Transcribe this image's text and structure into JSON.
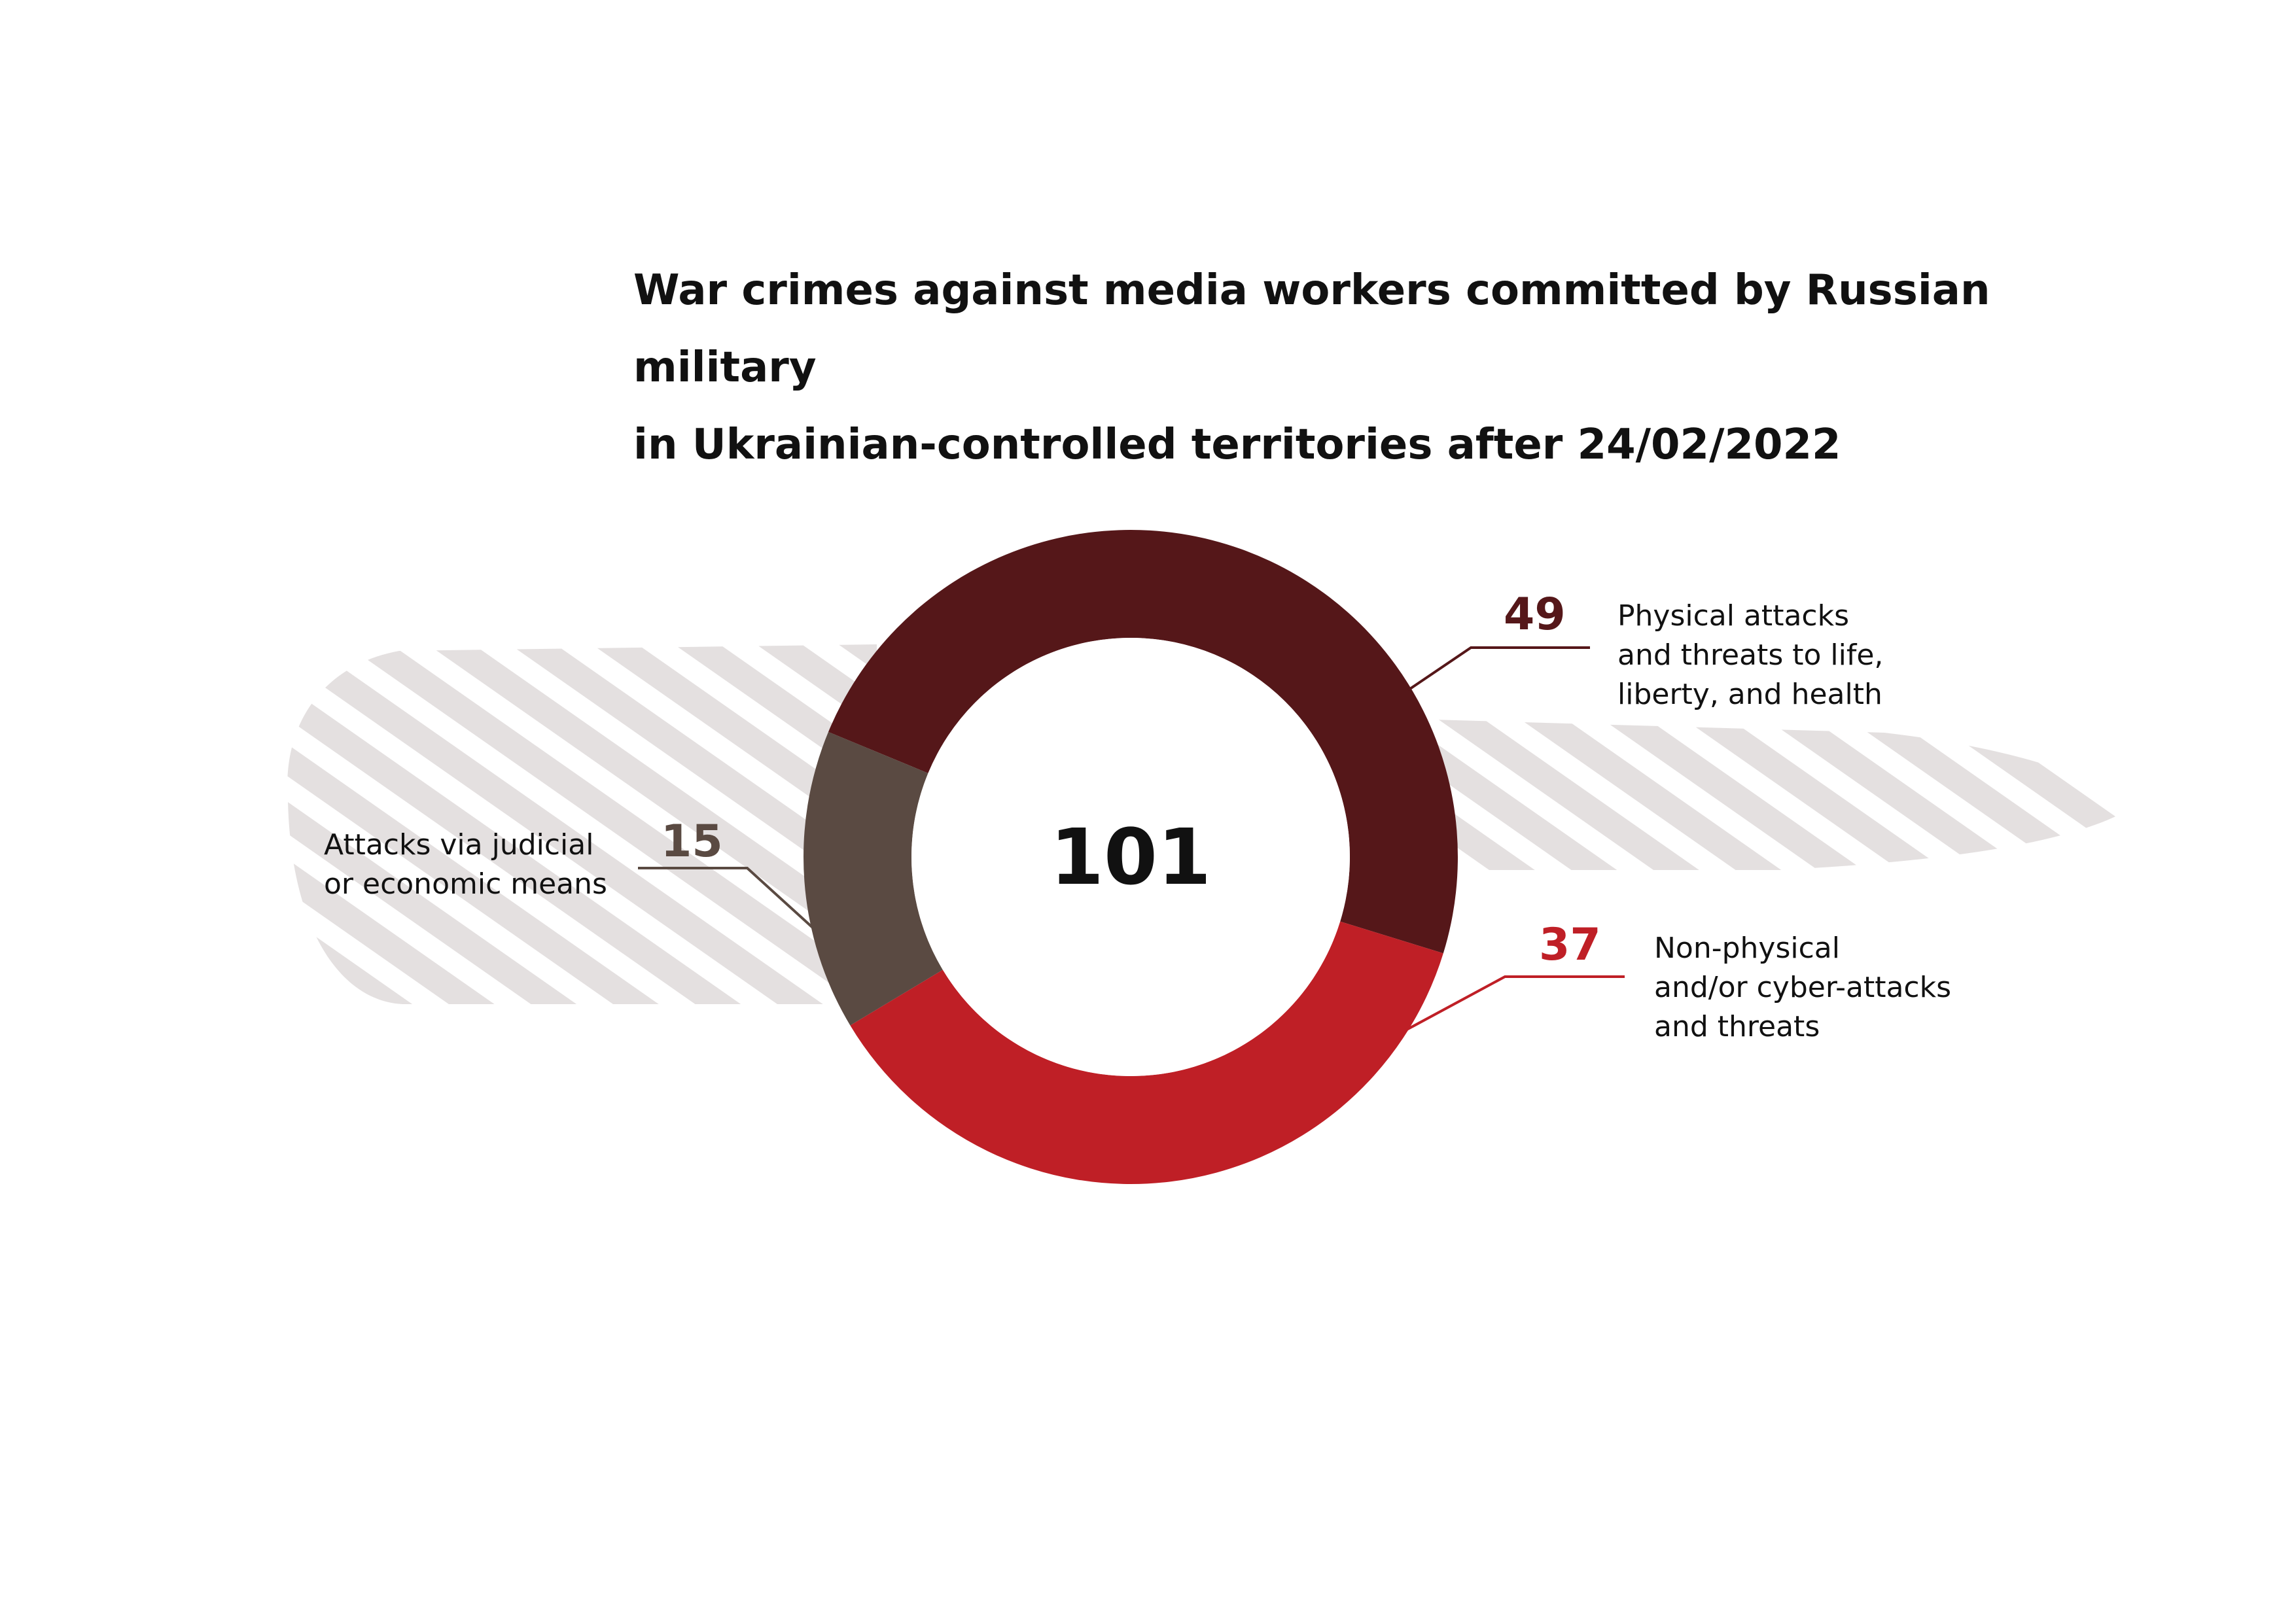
{
  "title": {
    "line1": "War crimes against media workers committed by Russian military",
    "line2": "in Ukrainian-controlled territories after 24/02/2022"
  },
  "chart_data": {
    "type": "pie",
    "subtype": "donut",
    "total": 101,
    "center_label": "101",
    "series": [
      {
        "value": 49,
        "label": [
          "Physical attacks",
          "and threats to life,",
          "liberty, and health"
        ],
        "color": "#551719"
      },
      {
        "value": 37,
        "label": [
          "Non-physical",
          "and/or cyber-attacks",
          "and threats"
        ],
        "color": "#bf1f26"
      },
      {
        "value": 15,
        "label": [
          "Attacks via judicial",
          "or economic means"
        ],
        "color": "#5a4a42"
      }
    ],
    "background_pattern_color": "#e4e0e0"
  }
}
